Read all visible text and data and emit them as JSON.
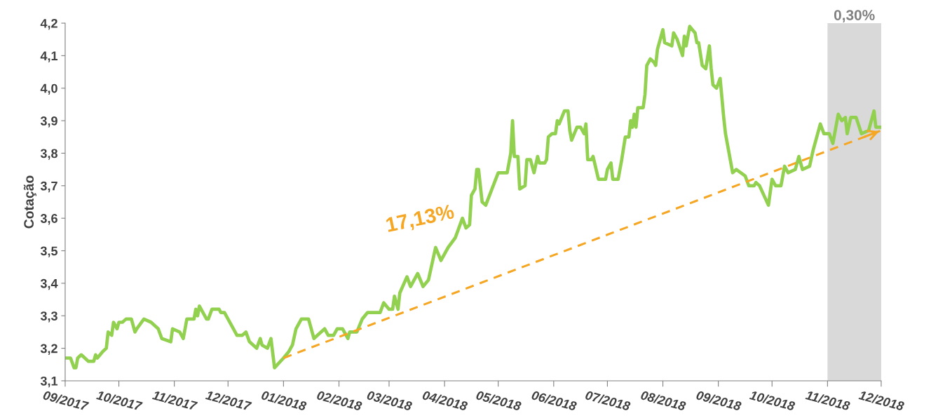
{
  "chart_data": {
    "type": "line",
    "ylabel": "Cotação",
    "xlim": [
      "2017-09-01",
      "2018-12-01"
    ],
    "ylim": [
      3.1,
      4.2
    ],
    "yticks": [
      {
        "value": 3.1,
        "label": "3,1"
      },
      {
        "value": 3.2,
        "label": "3,2"
      },
      {
        "value": 3.3,
        "label": "3,3"
      },
      {
        "value": 3.4,
        "label": "3,4"
      },
      {
        "value": 3.5,
        "label": "3,5"
      },
      {
        "value": 3.6,
        "label": "3,6"
      },
      {
        "value": 3.7,
        "label": "3,7"
      },
      {
        "value": 3.8,
        "label": "3,8"
      },
      {
        "value": 3.9,
        "label": "3,9"
      },
      {
        "value": 4.0,
        "label": "4,0"
      },
      {
        "value": 4.1,
        "label": "4,1"
      },
      {
        "value": 4.2,
        "label": "4,2"
      }
    ],
    "xticks": [
      {
        "value": "2017-09-01",
        "label": "09/2017"
      },
      {
        "value": "2017-10-01",
        "label": "10/2017"
      },
      {
        "value": "2017-11-01",
        "label": "11/2017"
      },
      {
        "value": "2017-12-01",
        "label": "12/2017"
      },
      {
        "value": "2018-01-01",
        "label": "01/2018"
      },
      {
        "value": "2018-02-01",
        "label": "02/2018"
      },
      {
        "value": "2018-03-01",
        "label": "03/2018"
      },
      {
        "value": "2018-04-01",
        "label": "04/2018"
      },
      {
        "value": "2018-05-01",
        "label": "05/2018"
      },
      {
        "value": "2018-06-01",
        "label": "06/2018"
      },
      {
        "value": "2018-07-01",
        "label": "07/2018"
      },
      {
        "value": "2018-08-01",
        "label": "08/2018"
      },
      {
        "value": "2018-09-01",
        "label": "09/2018"
      },
      {
        "value": "2018-10-01",
        "label": "10/2018"
      },
      {
        "value": "2018-11-01",
        "label": "11/2018"
      },
      {
        "value": "2018-12-01",
        "label": "12/2018"
      }
    ],
    "grid": false,
    "legend": false,
    "marker": "none",
    "bands": [
      {
        "axis": "x",
        "from": "2018-11-01",
        "to": "2018-12-01",
        "label": "0,30%",
        "color": "#d9d9d9"
      }
    ],
    "annotations": [
      "17,13%"
    ],
    "series": [
      {
        "color": "#92d050",
        "line_style": "solid",
        "x": [
          "2017-09-01",
          "2017-09-04",
          "2017-09-06",
          "2017-09-07",
          "2017-09-08",
          "2017-09-10",
          "2017-09-14",
          "2017-09-17",
          "2017-09-18",
          "2017-09-19",
          "2017-09-22",
          "2017-09-24",
          "2017-09-25",
          "2017-09-27",
          "2017-09-28",
          "2017-09-30",
          "2017-10-01",
          "2017-10-03",
          "2017-10-05",
          "2017-10-08",
          "2017-10-10",
          "2017-10-11",
          "2017-10-15",
          "2017-10-19",
          "2017-10-23",
          "2017-10-25",
          "2017-10-30",
          "2017-10-31",
          "2017-11-04",
          "2017-11-06",
          "2017-11-08",
          "2017-11-12",
          "2017-11-13",
          "2017-11-14",
          "2017-11-15",
          "2017-11-19",
          "2017-11-20",
          "2017-11-22",
          "2017-11-26",
          "2017-11-27",
          "2017-11-29",
          "2017-12-03",
          "2017-12-06",
          "2017-12-09",
          "2017-12-11",
          "2017-12-13",
          "2017-12-17",
          "2017-12-19",
          "2017-12-20",
          "2017-12-23",
          "2017-12-25",
          "2017-12-27",
          "2018-01-01",
          "2018-01-04",
          "2018-01-06",
          "2018-01-08",
          "2018-01-11",
          "2018-01-15",
          "2018-01-18",
          "2018-01-20",
          "2018-01-24",
          "2018-01-26",
          "2018-01-29",
          "2018-01-31",
          "2018-02-03",
          "2018-02-06",
          "2018-02-07",
          "2018-02-11",
          "2018-02-14",
          "2018-02-17",
          "2018-02-20",
          "2018-02-24",
          "2018-02-26",
          "2018-03-01",
          "2018-03-03",
          "2018-03-04",
          "2018-03-06",
          "2018-03-07",
          "2018-03-11",
          "2018-03-13",
          "2018-03-17",
          "2018-03-20",
          "2018-03-23",
          "2018-03-27",
          "2018-03-30",
          "2018-04-03",
          "2018-04-07",
          "2018-04-11",
          "2018-04-13",
          "2018-04-15",
          "2018-04-16",
          "2018-04-18",
          "2018-04-19",
          "2018-04-20",
          "2018-04-22",
          "2018-04-24",
          "2018-05-01",
          "2018-05-06",
          "2018-05-08",
          "2018-05-09",
          "2018-05-10",
          "2018-05-12",
          "2018-05-13",
          "2018-05-16",
          "2018-05-17",
          "2018-05-19",
          "2018-05-21",
          "2018-05-23",
          "2018-05-24",
          "2018-05-27",
          "2018-05-28",
          "2018-05-29",
          "2018-05-31",
          "2018-06-02",
          "2018-06-03",
          "2018-06-04",
          "2018-06-07",
          "2018-06-09",
          "2018-06-10",
          "2018-06-11",
          "2018-06-14",
          "2018-06-16",
          "2018-06-18",
          "2018-06-19",
          "2018-06-20",
          "2018-06-22",
          "2018-06-23",
          "2018-06-26",
          "2018-06-28",
          "2018-06-30",
          "2018-07-01",
          "2018-07-03",
          "2018-07-04",
          "2018-07-07",
          "2018-07-09",
          "2018-07-11",
          "2018-07-13",
          "2018-07-14",
          "2018-07-15",
          "2018-07-16",
          "2018-07-17",
          "2018-07-18",
          "2018-07-21",
          "2018-07-22",
          "2018-07-23",
          "2018-07-25",
          "2018-07-27",
          "2018-07-28",
          "2018-07-29",
          "2018-08-01",
          "2018-08-02",
          "2018-08-06",
          "2018-08-07",
          "2018-08-09",
          "2018-08-12",
          "2018-08-13",
          "2018-08-14",
          "2018-08-16",
          "2018-08-19",
          "2018-08-20",
          "2018-08-21",
          "2018-08-23",
          "2018-08-25",
          "2018-08-27",
          "2018-08-28",
          "2018-08-29",
          "2018-08-31",
          "2018-09-02",
          "2018-09-04",
          "2018-09-05",
          "2018-09-09",
          "2018-09-11",
          "2018-09-16",
          "2018-09-18",
          "2018-09-21",
          "2018-09-22",
          "2018-09-24",
          "2018-09-29",
          "2018-10-01",
          "2018-10-03",
          "2018-10-06",
          "2018-10-08",
          "2018-10-10",
          "2018-10-14",
          "2018-10-16",
          "2018-10-18",
          "2018-10-22",
          "2018-10-24",
          "2018-10-28",
          "2018-10-30",
          "2018-11-02",
          "2018-11-04",
          "2018-11-07",
          "2018-11-09",
          "2018-11-11",
          "2018-11-12",
          "2018-11-14",
          "2018-11-17",
          "2018-11-20",
          "2018-11-24",
          "2018-11-25",
          "2018-11-27",
          "2018-11-28",
          "2018-12-01"
        ],
        "values": [
          3.17,
          3.17,
          3.14,
          3.14,
          3.17,
          3.18,
          3.16,
          3.16,
          3.18,
          3.17,
          3.19,
          3.2,
          3.25,
          3.24,
          3.28,
          3.26,
          3.28,
          3.28,
          3.29,
          3.29,
          3.25,
          3.26,
          3.29,
          3.28,
          3.26,
          3.23,
          3.22,
          3.26,
          3.25,
          3.23,
          3.29,
          3.29,
          3.32,
          3.3,
          3.33,
          3.29,
          3.29,
          3.32,
          3.32,
          3.31,
          3.31,
          3.27,
          3.24,
          3.24,
          3.25,
          3.22,
          3.2,
          3.23,
          3.21,
          3.2,
          3.23,
          3.14,
          3.17,
          3.19,
          3.21,
          3.26,
          3.29,
          3.29,
          3.23,
          3.24,
          3.26,
          3.24,
          3.24,
          3.26,
          3.26,
          3.23,
          3.25,
          3.25,
          3.29,
          3.31,
          3.31,
          3.31,
          3.34,
          3.32,
          3.32,
          3.36,
          3.32,
          3.37,
          3.42,
          3.39,
          3.43,
          3.39,
          3.41,
          3.51,
          3.47,
          3.51,
          3.54,
          3.6,
          3.57,
          3.58,
          3.67,
          3.69,
          3.75,
          3.75,
          3.65,
          3.64,
          3.74,
          3.74,
          3.8,
          3.9,
          3.79,
          3.79,
          3.69,
          3.7,
          3.78,
          3.78,
          3.74,
          3.79,
          3.77,
          3.77,
          3.78,
          3.85,
          3.86,
          3.86,
          3.9,
          3.89,
          3.93,
          3.93,
          3.87,
          3.84,
          3.88,
          3.88,
          3.86,
          3.89,
          3.78,
          3.78,
          3.79,
          3.72,
          3.72,
          3.72,
          3.75,
          3.77,
          3.72,
          3.72,
          3.78,
          3.85,
          3.85,
          3.9,
          3.88,
          3.92,
          3.88,
          3.94,
          3.94,
          3.98,
          4.07,
          4.09,
          4.08,
          4.07,
          4.12,
          4.18,
          4.14,
          4.13,
          4.17,
          4.15,
          4.1,
          4.16,
          4.13,
          4.19,
          4.17,
          4.14,
          4.14,
          4.07,
          4.06,
          4.13,
          4.06,
          4.01,
          4.0,
          4.03,
          3.91,
          3.86,
          3.74,
          3.75,
          3.73,
          3.7,
          3.7,
          3.71,
          3.7,
          3.64,
          3.72,
          3.7,
          3.7,
          3.76,
          3.74,
          3.75,
          3.79,
          3.75,
          3.76,
          3.81,
          3.89,
          3.86,
          3.86,
          3.83,
          3.92,
          3.9,
          3.91,
          3.86,
          3.91,
          3.91,
          3.86,
          3.87,
          3.89,
          3.93,
          3.88,
          3.88
        ]
      },
      {
        "color": "#f5a623",
        "line_style": "dashed",
        "x": [
          "2018-01-01",
          "2018-12-01"
        ],
        "values": [
          3.17,
          3.87
        ]
      }
    ]
  }
}
